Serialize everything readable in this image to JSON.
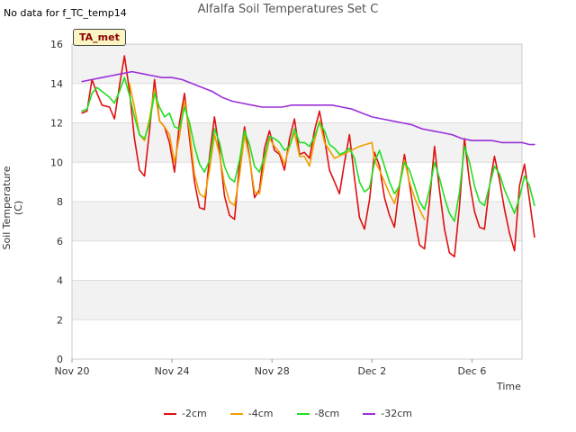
{
  "note": "No data for f_TC_temp14",
  "tag": "TA_met",
  "chart_data": {
    "type": "line",
    "title": "Alfalfa Soil Temperatures Set C",
    "xlabel": "Time",
    "ylabel": "Soil Temperature (C)",
    "xlim": [
      0,
      18
    ],
    "ylim": [
      0,
      16
    ],
    "x_ticks": [
      {
        "day": 0,
        "label": "Nov 20"
      },
      {
        "day": 4,
        "label": "Nov 24"
      },
      {
        "day": 8,
        "label": "Nov 28"
      },
      {
        "day": 12,
        "label": "Dec 2"
      },
      {
        "day": 16,
        "label": "Dec 6"
      }
    ],
    "y_ticks": [
      0,
      2,
      4,
      6,
      8,
      10,
      12,
      14,
      16
    ],
    "legend_position": "bottom",
    "series": [
      {
        "name": "-2cm",
        "color": "#e01010",
        "points": [
          [
            0.4,
            12.5
          ],
          [
            0.6,
            12.6
          ],
          [
            0.8,
            14.2
          ],
          [
            1.0,
            13.5
          ],
          [
            1.2,
            12.9
          ],
          [
            1.5,
            12.8
          ],
          [
            1.7,
            12.2
          ],
          [
            1.9,
            13.9
          ],
          [
            2.1,
            15.4
          ],
          [
            2.3,
            13.6
          ],
          [
            2.5,
            11.2
          ],
          [
            2.7,
            9.6
          ],
          [
            2.9,
            9.3
          ],
          [
            3.1,
            11.6
          ],
          [
            3.3,
            14.2
          ],
          [
            3.5,
            12.1
          ],
          [
            3.7,
            11.8
          ],
          [
            3.9,
            11.0
          ],
          [
            4.1,
            9.5
          ],
          [
            4.3,
            12.0
          ],
          [
            4.5,
            13.5
          ],
          [
            4.7,
            11.2
          ],
          [
            4.9,
            9.0
          ],
          [
            5.1,
            7.7
          ],
          [
            5.3,
            7.6
          ],
          [
            5.5,
            10.3
          ],
          [
            5.7,
            12.3
          ],
          [
            5.9,
            10.6
          ],
          [
            6.1,
            8.3
          ],
          [
            6.3,
            7.3
          ],
          [
            6.5,
            7.1
          ],
          [
            6.7,
            9.9
          ],
          [
            6.9,
            11.8
          ],
          [
            7.1,
            10.3
          ],
          [
            7.3,
            8.2
          ],
          [
            7.5,
            8.6
          ],
          [
            7.7,
            10.7
          ],
          [
            7.9,
            11.6
          ],
          [
            8.1,
            10.6
          ],
          [
            8.3,
            10.4
          ],
          [
            8.5,
            9.6
          ],
          [
            8.7,
            11.2
          ],
          [
            8.9,
            12.2
          ],
          [
            9.1,
            10.4
          ],
          [
            9.3,
            10.5
          ],
          [
            9.5,
            10.2
          ],
          [
            9.7,
            11.6
          ],
          [
            9.9,
            12.6
          ],
          [
            10.1,
            11.2
          ],
          [
            10.3,
            9.6
          ],
          [
            10.5,
            9.0
          ],
          [
            10.7,
            8.4
          ],
          [
            10.9,
            10.0
          ],
          [
            11.1,
            11.4
          ],
          [
            11.3,
            9.2
          ],
          [
            11.5,
            7.2
          ],
          [
            11.7,
            6.6
          ],
          [
            11.9,
            8.1
          ],
          [
            12.1,
            10.5
          ],
          [
            12.3,
            9.8
          ],
          [
            12.5,
            8.2
          ],
          [
            12.7,
            7.3
          ],
          [
            12.9,
            6.7
          ],
          [
            13.1,
            8.8
          ],
          [
            13.3,
            10.4
          ],
          [
            13.5,
            8.9
          ],
          [
            13.7,
            7.2
          ],
          [
            13.9,
            5.8
          ],
          [
            14.1,
            5.6
          ],
          [
            14.3,
            8.0
          ],
          [
            14.5,
            10.8
          ],
          [
            14.7,
            8.6
          ],
          [
            14.9,
            6.6
          ],
          [
            15.1,
            5.4
          ],
          [
            15.3,
            5.2
          ],
          [
            15.5,
            7.8
          ],
          [
            15.7,
            11.2
          ],
          [
            15.9,
            9.0
          ],
          [
            16.1,
            7.5
          ],
          [
            16.3,
            6.7
          ],
          [
            16.5,
            6.6
          ],
          [
            16.7,
            8.8
          ],
          [
            16.9,
            10.3
          ],
          [
            17.1,
            9.1
          ],
          [
            17.3,
            7.6
          ],
          [
            17.5,
            6.4
          ],
          [
            17.7,
            5.5
          ],
          [
            17.9,
            8.8
          ],
          [
            18.1,
            9.9
          ],
          [
            18.3,
            8.1
          ],
          [
            18.5,
            6.2
          ]
        ]
      },
      {
        "name": "-4cm",
        "color": "#f0a000",
        "points": [
          [
            2.3,
            14.0
          ],
          [
            2.5,
            12.8
          ],
          [
            2.7,
            11.4
          ],
          [
            2.9,
            11.1
          ],
          [
            3.1,
            12.2
          ],
          [
            3.3,
            13.7
          ],
          [
            3.5,
            12.1
          ],
          [
            3.7,
            11.8
          ],
          [
            3.9,
            11.4
          ],
          [
            4.1,
            10.0
          ],
          [
            4.3,
            11.3
          ],
          [
            4.5,
            13.1
          ],
          [
            4.7,
            11.6
          ],
          [
            4.9,
            9.4
          ],
          [
            5.1,
            8.4
          ],
          [
            5.3,
            8.2
          ],
          [
            5.5,
            9.6
          ],
          [
            5.7,
            11.4
          ],
          [
            5.9,
            10.4
          ],
          [
            6.1,
            8.9
          ],
          [
            6.3,
            8.0
          ],
          [
            6.5,
            7.8
          ],
          [
            6.7,
            9.3
          ],
          [
            6.9,
            11.4
          ],
          [
            7.1,
            10.2
          ],
          [
            7.3,
            8.5
          ],
          [
            7.5,
            8.4
          ],
          [
            7.7,
            10.0
          ],
          [
            7.9,
            11.2
          ],
          [
            8.1,
            10.8
          ],
          [
            8.3,
            10.5
          ],
          [
            8.5,
            9.9
          ],
          [
            8.7,
            10.8
          ],
          [
            8.9,
            11.5
          ],
          [
            9.1,
            10.3
          ],
          [
            9.3,
            10.3
          ],
          [
            9.5,
            9.8
          ],
          [
            9.7,
            11.1
          ],
          [
            9.9,
            12.1
          ],
          [
            10.1,
            11.0
          ],
          [
            10.5,
            10.2
          ],
          [
            11.0,
            10.5
          ],
          [
            11.5,
            10.8
          ],
          [
            12.0,
            11.0
          ],
          [
            12.1,
            10.1
          ],
          [
            12.3,
            9.6
          ],
          [
            12.5,
            9.0
          ],
          [
            12.7,
            8.4
          ],
          [
            12.9,
            7.9
          ],
          [
            13.1,
            8.9
          ],
          [
            13.3,
            10.1
          ],
          [
            13.5,
            9.0
          ],
          [
            13.7,
            8.2
          ],
          [
            13.9,
            7.6
          ],
          [
            14.1,
            7.1
          ]
        ]
      },
      {
        "name": "-8cm",
        "color": "#20e020",
        "points": [
          [
            0.4,
            12.6
          ],
          [
            0.6,
            12.7
          ],
          [
            0.8,
            13.5
          ],
          [
            1.0,
            13.8
          ],
          [
            1.2,
            13.6
          ],
          [
            1.5,
            13.3
          ],
          [
            1.7,
            13.0
          ],
          [
            1.9,
            13.6
          ],
          [
            2.1,
            14.3
          ],
          [
            2.3,
            13.4
          ],
          [
            2.5,
            12.3
          ],
          [
            2.7,
            11.4
          ],
          [
            2.9,
            11.2
          ],
          [
            3.1,
            12.0
          ],
          [
            3.3,
            13.5
          ],
          [
            3.5,
            12.8
          ],
          [
            3.7,
            12.3
          ],
          [
            3.9,
            12.5
          ],
          [
            4.1,
            11.8
          ],
          [
            4.3,
            11.7
          ],
          [
            4.5,
            12.8
          ],
          [
            4.7,
            12.0
          ],
          [
            4.9,
            10.8
          ],
          [
            5.1,
            9.9
          ],
          [
            5.3,
            9.5
          ],
          [
            5.5,
            10.1
          ],
          [
            5.7,
            11.7
          ],
          [
            5.9,
            11.0
          ],
          [
            6.1,
            9.8
          ],
          [
            6.3,
            9.2
          ],
          [
            6.5,
            9.0
          ],
          [
            6.7,
            10.1
          ],
          [
            6.9,
            11.6
          ],
          [
            7.1,
            10.9
          ],
          [
            7.3,
            9.8
          ],
          [
            7.5,
            9.5
          ],
          [
            7.7,
            10.3
          ],
          [
            7.9,
            11.3
          ],
          [
            8.1,
            11.2
          ],
          [
            8.3,
            11.0
          ],
          [
            8.5,
            10.6
          ],
          [
            8.7,
            10.8
          ],
          [
            8.9,
            11.7
          ],
          [
            9.1,
            11.0
          ],
          [
            9.3,
            11.0
          ],
          [
            9.5,
            10.8
          ],
          [
            9.7,
            11.3
          ],
          [
            9.9,
            12.0
          ],
          [
            10.1,
            11.6
          ],
          [
            10.3,
            10.9
          ],
          [
            10.5,
            10.7
          ],
          [
            10.7,
            10.4
          ],
          [
            10.9,
            10.5
          ],
          [
            11.1,
            10.7
          ],
          [
            11.3,
            10.2
          ],
          [
            11.5,
            9.0
          ],
          [
            11.7,
            8.5
          ],
          [
            11.9,
            8.7
          ],
          [
            12.1,
            10.0
          ],
          [
            12.3,
            10.6
          ],
          [
            12.5,
            9.8
          ],
          [
            12.7,
            9.0
          ],
          [
            12.9,
            8.4
          ],
          [
            13.1,
            8.8
          ],
          [
            13.3,
            10.0
          ],
          [
            13.5,
            9.6
          ],
          [
            13.7,
            8.8
          ],
          [
            13.9,
            8.0
          ],
          [
            14.1,
            7.6
          ],
          [
            14.3,
            8.6
          ],
          [
            14.5,
            10.0
          ],
          [
            14.7,
            9.2
          ],
          [
            14.9,
            8.2
          ],
          [
            15.1,
            7.4
          ],
          [
            15.3,
            7.0
          ],
          [
            15.5,
            8.5
          ],
          [
            15.7,
            10.8
          ],
          [
            15.9,
            10.0
          ],
          [
            16.1,
            8.8
          ],
          [
            16.3,
            8.0
          ],
          [
            16.5,
            7.8
          ],
          [
            16.7,
            8.8
          ],
          [
            16.9,
            9.8
          ],
          [
            17.1,
            9.4
          ],
          [
            17.3,
            8.6
          ],
          [
            17.5,
            8.0
          ],
          [
            17.7,
            7.4
          ],
          [
            17.9,
            8.2
          ],
          [
            18.1,
            9.3
          ],
          [
            18.3,
            8.8
          ],
          [
            18.5,
            7.8
          ]
        ]
      },
      {
        "name": "-32cm",
        "color": "#9a30d8",
        "points": [
          [
            0.4,
            14.1
          ],
          [
            0.8,
            14.2
          ],
          [
            1.2,
            14.3
          ],
          [
            1.6,
            14.4
          ],
          [
            2.0,
            14.5
          ],
          [
            2.4,
            14.6
          ],
          [
            2.8,
            14.5
          ],
          [
            3.2,
            14.4
          ],
          [
            3.6,
            14.3
          ],
          [
            4.0,
            14.3
          ],
          [
            4.4,
            14.2
          ],
          [
            4.8,
            14.0
          ],
          [
            5.2,
            13.8
          ],
          [
            5.6,
            13.6
          ],
          [
            6.0,
            13.3
          ],
          [
            6.4,
            13.1
          ],
          [
            6.8,
            13.0
          ],
          [
            7.2,
            12.9
          ],
          [
            7.6,
            12.8
          ],
          [
            8.0,
            12.8
          ],
          [
            8.4,
            12.8
          ],
          [
            8.8,
            12.9
          ],
          [
            9.2,
            12.9
          ],
          [
            9.6,
            12.9
          ],
          [
            10.0,
            12.9
          ],
          [
            10.4,
            12.9
          ],
          [
            10.8,
            12.8
          ],
          [
            11.2,
            12.7
          ],
          [
            11.6,
            12.5
          ],
          [
            12.0,
            12.3
          ],
          [
            12.4,
            12.2
          ],
          [
            12.8,
            12.1
          ],
          [
            13.2,
            12.0
          ],
          [
            13.6,
            11.9
          ],
          [
            14.0,
            11.7
          ],
          [
            14.4,
            11.6
          ],
          [
            14.8,
            11.5
          ],
          [
            15.2,
            11.4
          ],
          [
            15.6,
            11.2
          ],
          [
            16.0,
            11.1
          ],
          [
            16.4,
            11.1
          ],
          [
            16.8,
            11.1
          ],
          [
            17.2,
            11.0
          ],
          [
            17.6,
            11.0
          ],
          [
            18.0,
            11.0
          ],
          [
            18.3,
            10.9
          ],
          [
            18.5,
            10.9
          ]
        ]
      }
    ]
  }
}
